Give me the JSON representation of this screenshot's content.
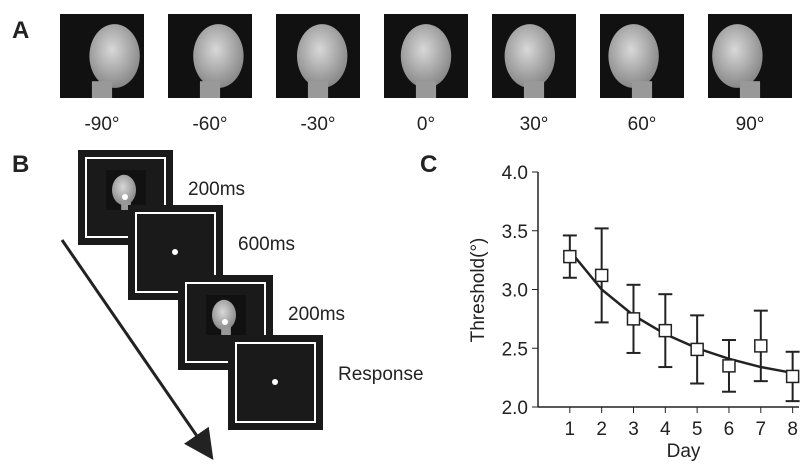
{
  "panel_a": {
    "label": "A",
    "angles": [
      "-90°",
      "-60°",
      "-30°",
      "0°",
      "30°",
      "60°",
      "90°"
    ]
  },
  "panel_b": {
    "label": "B",
    "steps": [
      "200ms",
      "600ms",
      "200ms",
      "Response"
    ]
  },
  "panel_c_label": "C",
  "chart_data": {
    "type": "errorbar",
    "x_label": "Day",
    "y_label": "Threshold(°)",
    "x": [
      1,
      2,
      3,
      4,
      5,
      6,
      7,
      8
    ],
    "values": [
      3.28,
      3.12,
      2.75,
      2.65,
      2.49,
      2.35,
      2.52,
      2.26
    ],
    "errors": [
      0.18,
      0.4,
      0.29,
      0.31,
      0.29,
      0.22,
      0.3,
      0.21
    ],
    "fit_values": [
      3.33,
      3.0,
      2.78,
      2.62,
      2.5,
      2.41,
      2.34,
      2.29
    ],
    "xlim": [
      0,
      8.2
    ],
    "xticks": [
      1,
      2,
      3,
      4,
      5,
      6,
      7,
      8
    ],
    "ylim": [
      2,
      4
    ],
    "yticks": [
      {
        "value": 2,
        "label": "2.0"
      },
      2.5,
      {
        "value": 3,
        "label": "3.0"
      },
      3.5,
      {
        "value": 4,
        "label": "4.0"
      }
    ]
  }
}
